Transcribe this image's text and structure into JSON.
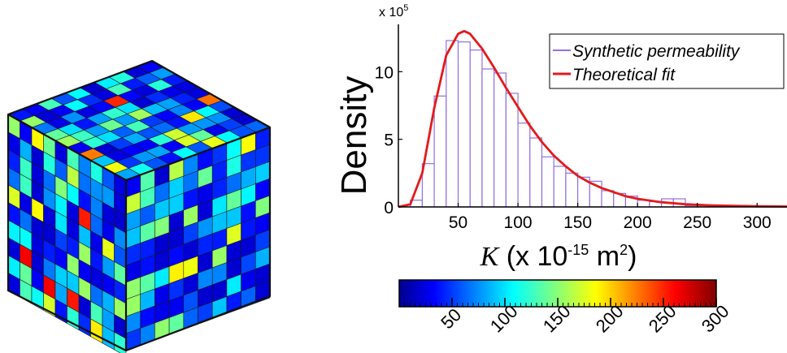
{
  "chart_data": {
    "type": "bar",
    "subtype": "histogram-with-fit",
    "ylabel": "Density",
    "xlabel": {
      "symbol": "K",
      "unit_prefix": " (x 10",
      "exponent": "-15",
      "unit_mid": " m",
      "unit_exp": "2",
      "unit_suffix": ")"
    },
    "y_multiplier": {
      "prefix": "x 10",
      "exponent": "5"
    },
    "xlim": [
      0,
      325
    ],
    "ylim": [
      0,
      13.5
    ],
    "x_ticks": [
      "50",
      "100",
      "150",
      "200",
      "250",
      "300"
    ],
    "x_tick_values": [
      50,
      100,
      150,
      200,
      250,
      300
    ],
    "y_ticks": [
      "0",
      "5",
      "10"
    ],
    "y_tick_values": [
      0,
      5,
      10
    ],
    "bin_width": 10,
    "series": [
      {
        "name": "Synthetic permeability",
        "kind": "histogram",
        "color": "#9370DB",
        "bin_left_edges": [
          10,
          20,
          30,
          40,
          50,
          60,
          70,
          80,
          90,
          100,
          110,
          120,
          130,
          140,
          150,
          160,
          170,
          180,
          190,
          200,
          210,
          220,
          230,
          240,
          250
        ],
        "values": [
          0.5,
          3.2,
          8.2,
          12.3,
          12.2,
          11.6,
          10.2,
          9.9,
          8.4,
          6.2,
          5.1,
          3.7,
          3.0,
          2.5,
          2.2,
          1.9,
          1.2,
          1.0,
          0.8,
          0.5,
          0.4,
          0.6,
          0.6,
          0.1,
          0.1
        ]
      },
      {
        "name": "Theoretical fit",
        "kind": "line",
        "color": "#E31A1C",
        "x": [
          0,
          10,
          20,
          30,
          40,
          50,
          55,
          60,
          70,
          80,
          90,
          100,
          110,
          120,
          130,
          140,
          150,
          160,
          170,
          180,
          190,
          200,
          220,
          240,
          260,
          280,
          300,
          325
        ],
        "values": [
          0,
          0.2,
          2.5,
          7.3,
          11.2,
          12.8,
          13.0,
          12.8,
          11.7,
          10.3,
          8.8,
          7.4,
          6.0,
          4.8,
          3.8,
          3.0,
          2.3,
          1.8,
          1.4,
          1.1,
          0.8,
          0.6,
          0.35,
          0.2,
          0.12,
          0.08,
          0.05,
          0.03
        ]
      }
    ],
    "legend": {
      "position": "top-right",
      "italic": true
    },
    "colorbar": {
      "orientation": "horizontal",
      "colormap": "jet",
      "range": [
        0,
        300
      ],
      "tick_labels": [
        "50",
        "100",
        "150",
        "200",
        "250",
        "300"
      ],
      "tick_values": [
        50,
        100,
        150,
        200,
        250,
        300
      ],
      "tick_label_rotation_deg": -45
    },
    "cube": {
      "grid_size": 10,
      "colormap": "jet",
      "value_range": [
        0,
        300
      ]
    }
  }
}
